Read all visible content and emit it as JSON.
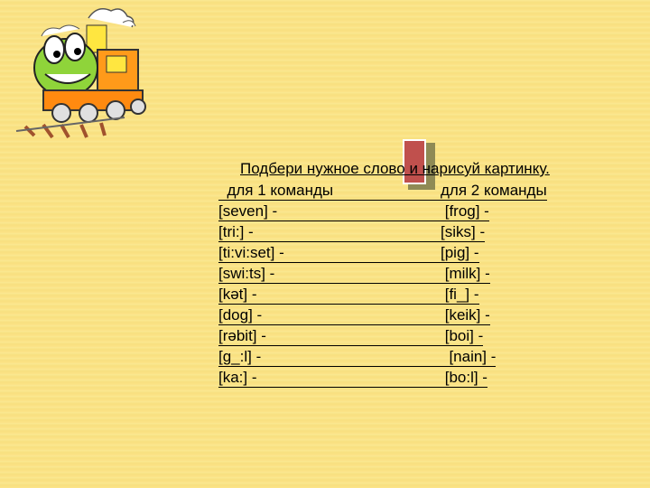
{
  "title": "Подбери нужное слово и нарисуй картинку.",
  "headers": {
    "left": "  для 1 команды",
    "right": "для 2 команды"
  },
  "rows": [
    {
      "left": "[seven] -",
      "right": " [frog] -"
    },
    {
      "left": "[tri:] -",
      "right": "[siks] -"
    },
    {
      "left": "[ti:vi:set] -",
      "right": "[pig] -"
    },
    {
      "left": "[swi:ts] -",
      "right": " [milk] -"
    },
    {
      "left": "[kət] -",
      "right": " [fi_] -"
    },
    {
      "left": "[dog] -",
      "right": " [keik] -"
    },
    {
      "left": "[rəbit] -",
      "right": " [boi] -"
    },
    {
      "left": "[g_:l] -",
      "right": "  [nain] -"
    },
    {
      "left": "[ka:] -",
      "right": " [bo:l] -"
    }
  ],
  "colors": {
    "background": "#fbe48a",
    "bookmark": "#c0504d",
    "text": "#000000"
  },
  "icons": {
    "train": "cartoon-train-icon",
    "bookmark": "bookmark-icon"
  }
}
